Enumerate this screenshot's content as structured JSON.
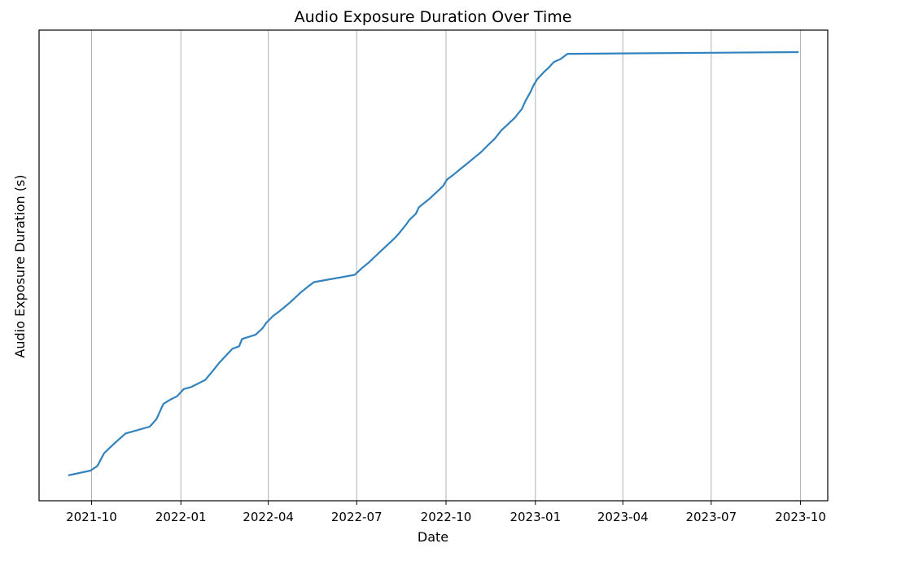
{
  "chart_data": {
    "type": "line",
    "title": "Audio Exposure Duration Over Time",
    "xlabel": "Date",
    "ylabel": "Audio Exposure Duration (s)",
    "x_ticks": [
      "2021-10",
      "2022-01",
      "2022-04",
      "2022-07",
      "2022-10",
      "2023-01",
      "2023-04",
      "2023-07",
      "2023-10"
    ],
    "x_scale": "date",
    "xlim": [
      "2021-08-08",
      "2023-10-29"
    ],
    "y_ticks_shown": false,
    "ylim": [
      0,
      1
    ],
    "grid": "vertical",
    "color": "#3182bd",
    "series": [
      {
        "x": [
          "2021-09-07",
          "2021-09-30",
          "2021-10-07",
          "2021-10-14",
          "2021-10-21",
          "2021-10-28",
          "2021-11-05",
          "2021-11-30",
          "2021-12-07",
          "2021-12-14",
          "2021-12-21",
          "2021-12-28",
          "2022-01-04",
          "2022-01-11",
          "2022-01-26",
          "2022-02-02",
          "2022-02-09",
          "2022-02-16",
          "2022-02-23",
          "2022-03-02",
          "2022-03-05",
          "2022-03-12",
          "2022-03-19",
          "2022-03-26",
          "2022-03-30",
          "2022-04-06",
          "2022-04-13",
          "2022-04-20",
          "2022-04-27",
          "2022-05-04",
          "2022-05-11",
          "2022-05-18",
          "2022-06-29",
          "2022-07-06",
          "2022-07-13",
          "2022-07-20",
          "2022-07-27",
          "2022-08-03",
          "2022-08-10",
          "2022-08-14",
          "2022-08-21",
          "2022-08-24",
          "2022-08-31",
          "2022-09-03",
          "2022-09-14",
          "2022-09-21",
          "2022-09-28",
          "2022-10-02",
          "2022-10-09",
          "2022-10-16",
          "2022-10-23",
          "2022-10-30",
          "2022-11-06",
          "2022-11-13",
          "2022-11-20",
          "2022-11-27",
          "2022-12-04",
          "2022-12-11",
          "2022-12-18",
          "2022-12-22",
          "2022-12-27",
          "2022-12-30",
          "2023-01-03",
          "2023-01-10",
          "2023-01-14",
          "2023-01-20",
          "2023-01-27",
          "2023-02-03",
          "2023-02-07",
          "2023-09-29"
        ],
        "values": [
          0.008,
          0.019,
          0.03,
          0.06,
          0.075,
          0.09,
          0.106,
          0.122,
          0.14,
          0.175,
          0.185,
          0.193,
          0.21,
          0.214,
          0.231,
          0.25,
          0.27,
          0.287,
          0.304,
          0.31,
          0.327,
          0.332,
          0.337,
          0.352,
          0.365,
          0.381,
          0.393,
          0.406,
          0.42,
          0.435,
          0.448,
          0.46,
          0.477,
          0.492,
          0.505,
          0.52,
          0.535,
          0.55,
          0.565,
          0.575,
          0.595,
          0.605,
          0.62,
          0.635,
          0.655,
          0.67,
          0.685,
          0.7,
          0.712,
          0.725,
          0.738,
          0.751,
          0.764,
          0.78,
          0.795,
          0.815,
          0.83,
          0.845,
          0.865,
          0.885,
          0.905,
          0.92,
          0.935,
          0.952,
          0.96,
          0.975,
          0.982,
          0.994,
          0.994,
          0.998
        ]
      }
    ]
  }
}
